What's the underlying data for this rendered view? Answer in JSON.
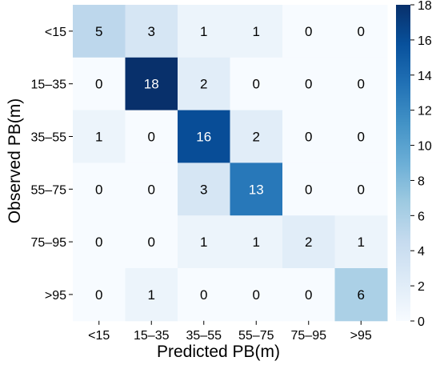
{
  "chart_data": {
    "type": "heatmap",
    "xlabel": "Predicted PB(m)",
    "ylabel": "Observed PB(m)",
    "x_categories": [
      "<15",
      "15–35",
      "35–55",
      "55–75",
      "75–95",
      ">95"
    ],
    "y_categories": [
      "<15",
      "15–35",
      "35–55",
      "55–75",
      "75–95",
      ">95"
    ],
    "values": [
      [
        5,
        3,
        1,
        1,
        0,
        0
      ],
      [
        0,
        18,
        2,
        0,
        0,
        0
      ],
      [
        1,
        0,
        16,
        2,
        0,
        0
      ],
      [
        0,
        0,
        3,
        13,
        0,
        0
      ],
      [
        0,
        0,
        1,
        1,
        2,
        1
      ],
      [
        0,
        1,
        0,
        0,
        0,
        6
      ]
    ],
    "colorbar": {
      "min": 0,
      "max": 18,
      "ticks": [
        0,
        2,
        4,
        6,
        8,
        10,
        12,
        14,
        16,
        18
      ],
      "colormap": "Blues"
    },
    "grid": false
  }
}
